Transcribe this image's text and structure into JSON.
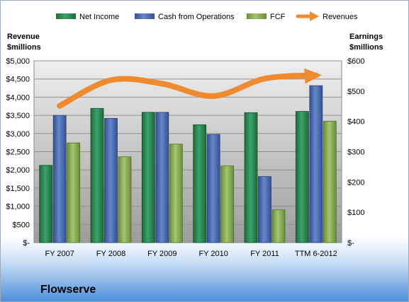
{
  "company": "Flowserve",
  "colors": {
    "net_income": "#2e8b57",
    "cash_from_operations": "#4f6fb3",
    "fcf": "#8aad55",
    "revenues": "#f08a2e"
  },
  "chart_data": {
    "type": "bar",
    "categories": [
      "FY 2007",
      "FY 2008",
      "FY 2009",
      "FY 2010",
      "FY 2011",
      "TTM 6-2012"
    ],
    "series": [
      {
        "name": "Net Income",
        "axis": "right",
        "values": [
          255,
          443,
          430,
          389,
          429,
          433
        ]
      },
      {
        "name": "Cash from Operations",
        "axis": "right",
        "values": [
          420,
          410,
          430,
          357,
          218,
          518
        ]
      },
      {
        "name": "FCF",
        "axis": "right",
        "values": [
          329,
          283,
          325,
          253,
          108,
          401
        ]
      },
      {
        "name": "Revenues",
        "type": "line",
        "axis": "left",
        "values": [
          3760,
          4470,
          4370,
          4030,
          4510,
          4600
        ]
      }
    ],
    "left_axis": {
      "label_line1": "Revenue",
      "label_line2": "$millions",
      "ylim": [
        0,
        5000
      ],
      "ticks": [
        "$-",
        "$500",
        "$1,000",
        "$1,500",
        "$2,000",
        "$2,500",
        "$3,000",
        "$3,500",
        "$4,000",
        "$4,500",
        "$5,000"
      ]
    },
    "right_axis": {
      "label_line1": "Earnings",
      "label_line2": "$millions",
      "ylim": [
        0,
        600
      ],
      "ticks": [
        "$-",
        "$100",
        "$200",
        "$300",
        "$400",
        "$500",
        "$600"
      ]
    },
    "legend": {
      "position": "top",
      "items": [
        "Net Income",
        "Cash from Operations",
        "FCF",
        "Revenues"
      ]
    },
    "grid": true
  }
}
